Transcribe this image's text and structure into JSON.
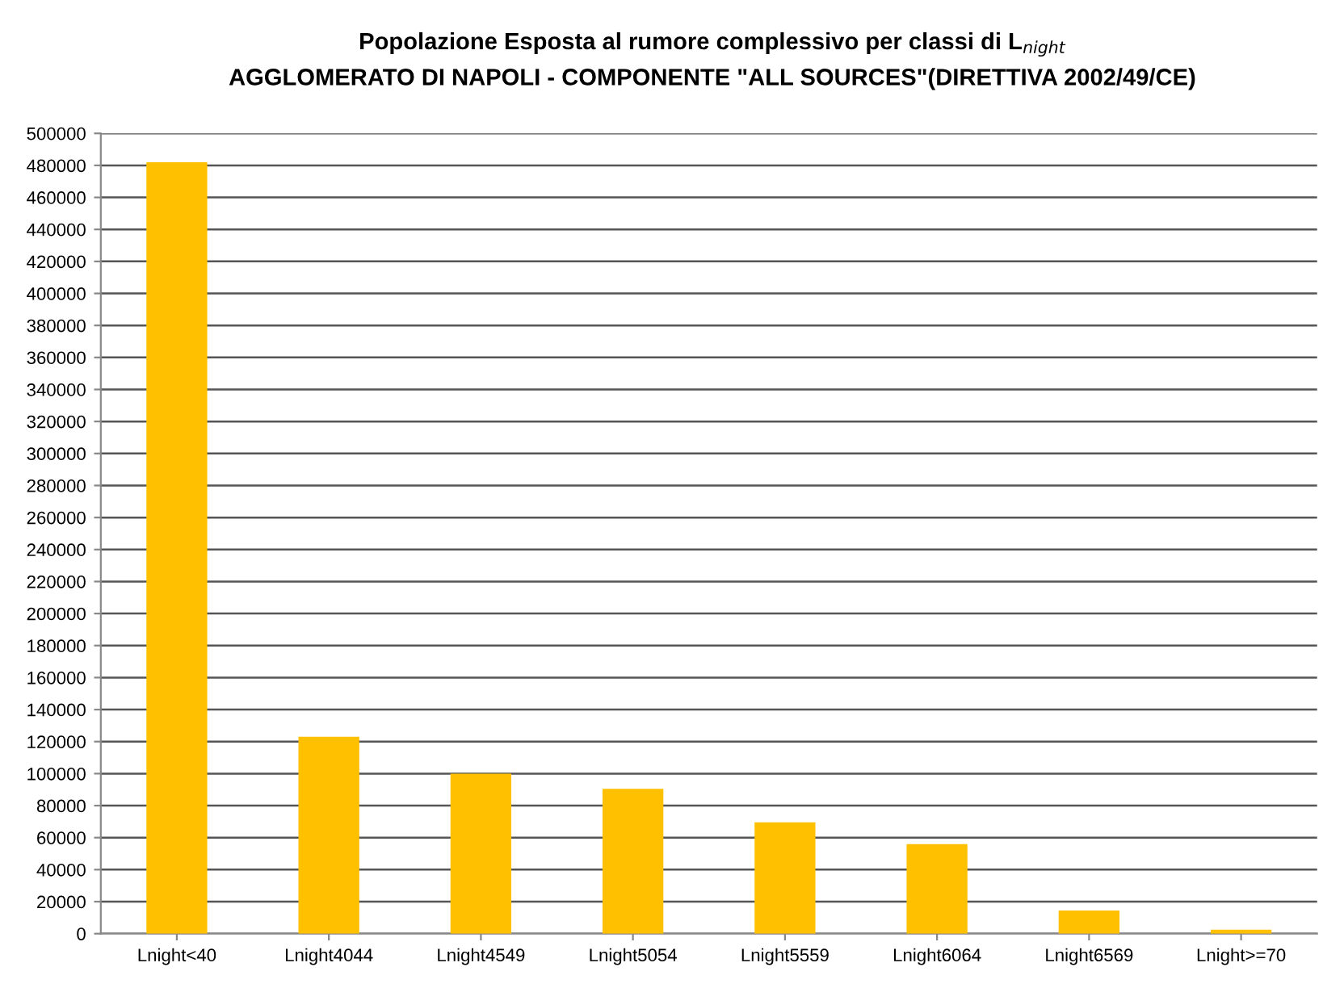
{
  "chart_data": {
    "type": "bar",
    "title": "Popolazione Esposta al rumore complessivo per classi di L$_{night}$",
    "subtitle": "AGGLOMERATO DI NAPOLI - COMPONENTE \"ALL SOURCES\"(DIRETTIVA 2002/49/CE)",
    "categories": [
      "Lnight<40",
      "Lnight4044",
      "Lnight4549",
      "Lnight5054",
      "Lnight5559",
      "Lnight6064",
      "Lnight6569",
      "Lnight>=70"
    ],
    "values": [
      482000,
      123000,
      100000,
      90500,
      69500,
      56000,
      14500,
      2500
    ],
    "color": "#ffc000",
    "ylim": [
      0,
      500000
    ],
    "yticks": [
      0,
      20000,
      40000,
      60000,
      80000,
      100000,
      120000,
      140000,
      160000,
      180000,
      200000,
      220000,
      240000,
      260000,
      280000,
      300000,
      320000,
      340000,
      360000,
      380000,
      400000,
      420000,
      440000,
      460000,
      480000,
      500000
    ],
    "grid": "y"
  }
}
